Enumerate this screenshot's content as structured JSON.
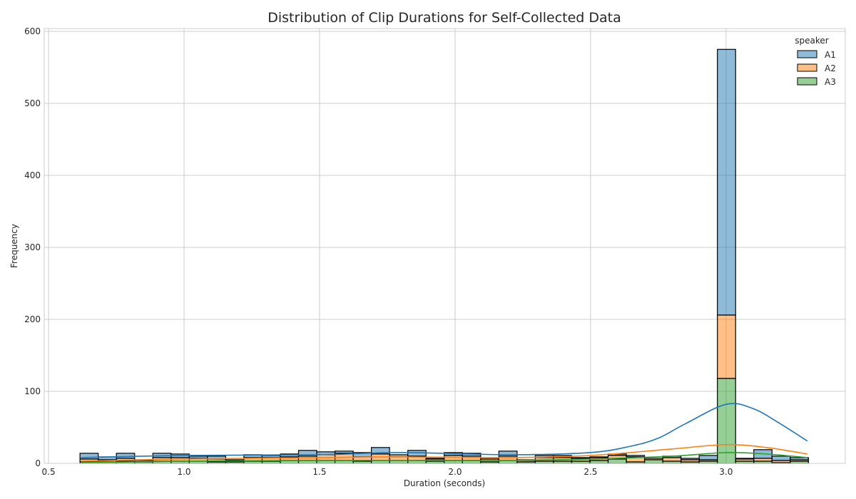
{
  "chart_data": {
    "type": "bar",
    "stacked": true,
    "title": "Distribution of Clip Durations for Self-Collected Data",
    "xlabel": "Duration (seconds)",
    "ylabel": "Frequency",
    "xlim": [
      0.484,
      3.44
    ],
    "ylim": [
      0,
      604
    ],
    "xticks": [
      0.5,
      1.0,
      1.5,
      2.0,
      2.5,
      3.0
    ],
    "xtick_labels": [
      "0.5",
      "1.0",
      "1.5",
      "2.0",
      "2.5",
      "3.0"
    ],
    "yticks": [
      0,
      100,
      200,
      300,
      400,
      500,
      600
    ],
    "ytick_labels": [
      "0",
      "100",
      "200",
      "300",
      "400",
      "500",
      "600"
    ],
    "grid": true,
    "legend": {
      "title": "speaker",
      "placement": "top-right"
    },
    "bin_start": 0.616,
    "bin_width": 0.0672,
    "series": [
      {
        "name": "A1",
        "color": "#1f77b4",
        "values": [
          8,
          4,
          7,
          1,
          6,
          5,
          3,
          4,
          1,
          4,
          3,
          4,
          8,
          4,
          3,
          6,
          9,
          3,
          8,
          1,
          4,
          4,
          2,
          7,
          1,
          3,
          3,
          1,
          1,
          2,
          2,
          0,
          2,
          2,
          6,
          369,
          1,
          12,
          6,
          3
        ],
        "kde": {
          "x": [
            0.62,
            1.0,
            1.5,
            1.8,
            2.2,
            2.5,
            2.65,
            2.75,
            2.85,
            3.0,
            3.1,
            3.2,
            3.3
          ],
          "y": [
            8,
            11,
            12,
            15,
            12,
            15,
            24,
            35,
            55,
            82,
            76,
            55,
            31
          ]
        }
      },
      {
        "name": "A2",
        "color": "#ff7f0e",
        "values": [
          4,
          3,
          4,
          2,
          5,
          5,
          4,
          4,
          2,
          5,
          5,
          5,
          6,
          8,
          10,
          6,
          9,
          5,
          6,
          3,
          7,
          6,
          4,
          6,
          2,
          5,
          5,
          4,
          4,
          5,
          7,
          2,
          5,
          3,
          2,
          88,
          3,
          4,
          3,
          2
        ],
        "kde": {
          "x": [
            0.62,
            1.0,
            1.5,
            1.8,
            2.2,
            2.5,
            2.8,
            3.0,
            3.15,
            3.3
          ],
          "y": [
            3,
            6,
            8,
            9,
            8,
            11,
            20,
            26,
            22,
            13
          ]
        }
      },
      {
        "name": "A3",
        "color": "#2ca02c",
        "values": [
          2,
          2,
          3,
          2,
          3,
          3,
          3,
          2,
          2,
          3,
          3,
          4,
          4,
          4,
          4,
          3,
          4,
          4,
          4,
          3,
          4,
          4,
          2,
          4,
          2,
          3,
          3,
          3,
          4,
          6,
          2,
          5,
          3,
          2,
          3,
          118,
          3,
          3,
          1,
          3
        ],
        "kde": {
          "x": [
            0.62,
            1.0,
            1.5,
            2.0,
            2.2,
            2.5,
            2.8,
            3.0,
            3.15,
            3.3
          ],
          "y": [
            1,
            3,
            4,
            4,
            4,
            6,
            10,
            15,
            13,
            8
          ]
        }
      }
    ]
  }
}
